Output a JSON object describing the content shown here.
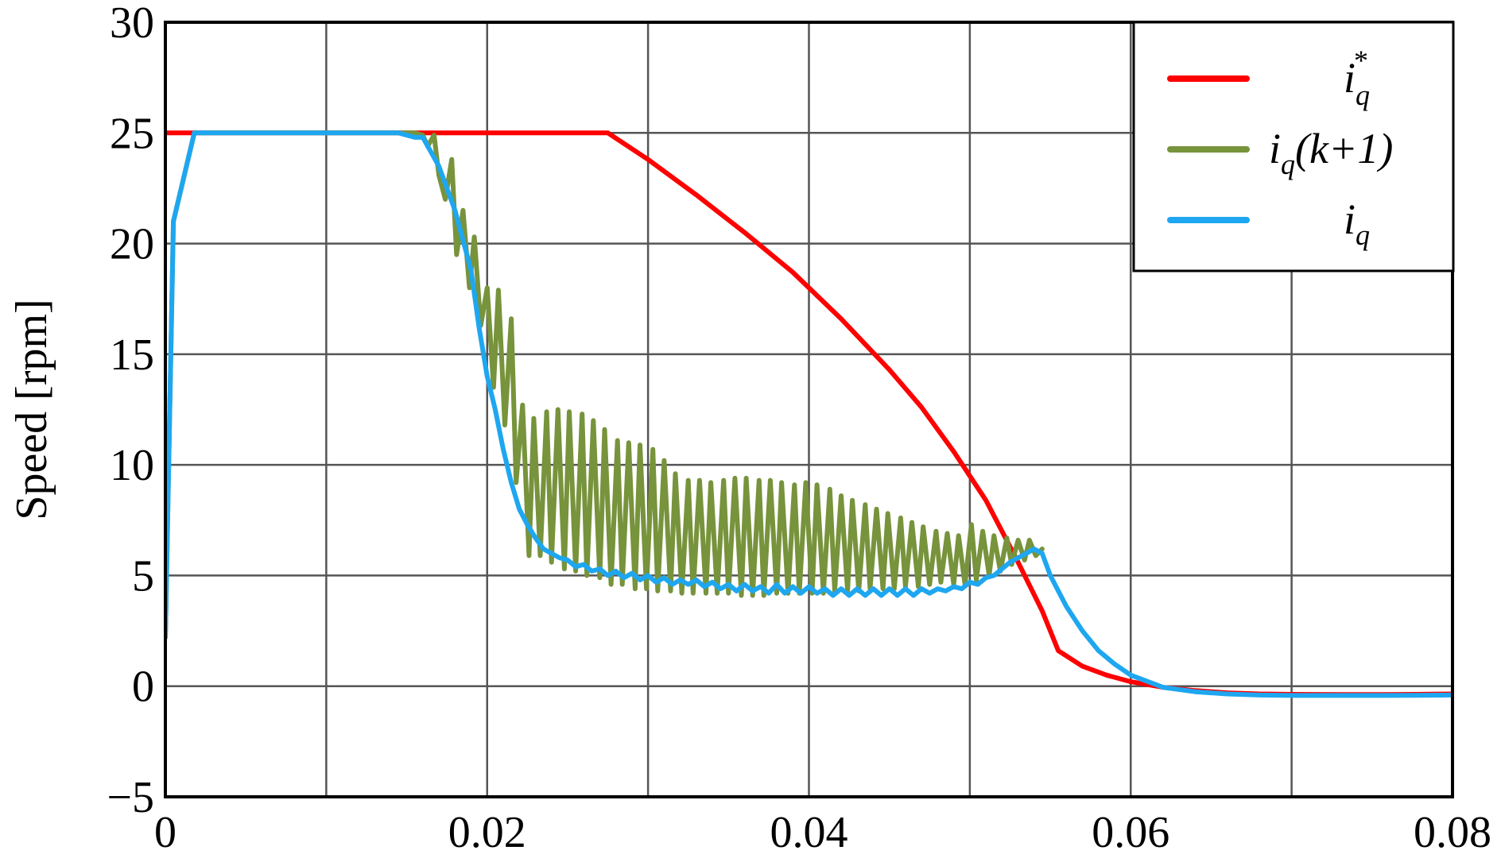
{
  "chart_data": {
    "type": "line",
    "title": "",
    "xlabel": "",
    "ylabel": "Speed [rpm]",
    "xlim": [
      0,
      0.08
    ],
    "ylim": [
      -5,
      30
    ],
    "grid": true,
    "legend_position": "top-right",
    "x_ticks": [
      {
        "value": 0,
        "label": "0"
      },
      {
        "value": 0.01,
        "label": ""
      },
      {
        "value": 0.02,
        "label": "0.02"
      },
      {
        "value": 0.03,
        "label": ""
      },
      {
        "value": 0.04,
        "label": "0.04"
      },
      {
        "value": 0.05,
        "label": ""
      },
      {
        "value": 0.06,
        "label": "0.06"
      },
      {
        "value": 0.07,
        "label": ""
      },
      {
        "value": 0.08,
        "label": "0.08"
      }
    ],
    "y_ticks": [
      {
        "value": -5,
        "label": "−5"
      },
      {
        "value": 0,
        "label": "0"
      },
      {
        "value": 5,
        "label": "5"
      },
      {
        "value": 10,
        "label": "10"
      },
      {
        "value": 15,
        "label": "15"
      },
      {
        "value": 20,
        "label": "20"
      },
      {
        "value": 25,
        "label": "25"
      },
      {
        "value": 30,
        "label": "30"
      }
    ],
    "series": [
      {
        "name": "i_q^*",
        "legend": {
          "base": "i",
          "sub": "q",
          "sup": "*",
          "tail": ""
        },
        "color": "#ff0000",
        "x": [
          0,
          0.0275,
          0.03,
          0.033,
          0.036,
          0.039,
          0.042,
          0.045,
          0.047,
          0.049,
          0.051,
          0.053,
          0.0545,
          0.0555,
          0.057,
          0.0585,
          0.06,
          0.062,
          0.064,
          0.066,
          0.068,
          0.07,
          0.073,
          0.076,
          0.08
        ],
        "y": [
          25,
          25,
          23.8,
          22.2,
          20.5,
          18.7,
          16.6,
          14.3,
          12.6,
          10.6,
          8.4,
          5.6,
          3.4,
          1.6,
          0.9,
          0.5,
          0.2,
          -0.05,
          -0.2,
          -0.3,
          -0.35,
          -0.37,
          -0.38,
          -0.38,
          -0.35
        ]
      },
      {
        "name": "i_q(k+1)",
        "legend": {
          "base": "i",
          "sub": "q",
          "sup": "",
          "tail": "(k+1)"
        },
        "color": "#77933c",
        "x": [
          0,
          0.0005,
          0.0018,
          0.0145,
          0.0155,
          0.016,
          0.0163,
          0.0167,
          0.017,
          0.0174,
          0.0178,
          0.0181,
          0.0185,
          0.0189,
          0.0192,
          0.0196,
          0.02,
          0.0204,
          0.0207,
          0.0211,
          0.0215,
          0.0218,
          0.0222,
          0.0226,
          0.0229,
          0.0233,
          0.0237,
          0.024,
          0.0244,
          0.0248,
          0.0251,
          0.0255,
          0.0259,
          0.0262,
          0.0266,
          0.027,
          0.0273,
          0.0277,
          0.0281,
          0.0284,
          0.0288,
          0.0292,
          0.0295,
          0.0299,
          0.0303,
          0.0306,
          0.031,
          0.0314,
          0.0317,
          0.0321,
          0.0325,
          0.0328,
          0.0332,
          0.0336,
          0.0339,
          0.0343,
          0.0347,
          0.035,
          0.0354,
          0.0358,
          0.0361,
          0.0365,
          0.0369,
          0.0372,
          0.0376,
          0.038,
          0.0383,
          0.0387,
          0.0391,
          0.0394,
          0.0398,
          0.0402,
          0.0405,
          0.0409,
          0.0413,
          0.0416,
          0.042,
          0.0424,
          0.0427,
          0.0431,
          0.0435,
          0.0438,
          0.0442,
          0.0446,
          0.0449,
          0.0453,
          0.0457,
          0.046,
          0.0464,
          0.0468,
          0.0471,
          0.0475,
          0.0479,
          0.0482,
          0.0486,
          0.049,
          0.0493,
          0.0497,
          0.0501,
          0.0504,
          0.0508,
          0.0512,
          0.0515,
          0.0519,
          0.0523,
          0.0526,
          0.053,
          0.0534,
          0.0537,
          0.0541,
          0.0545
        ],
        "y": [
          2.2,
          21,
          25,
          25,
          25,
          24.9,
          24.4,
          24.9,
          23.1,
          22,
          23.8,
          19.5,
          21.5,
          18,
          20.3,
          16.3,
          18,
          13.5,
          17.9,
          11.8,
          16.6,
          9.2,
          12.7,
          5.9,
          12.1,
          5.9,
          12.4,
          5.6,
          12.5,
          5.3,
          12.4,
          5.2,
          12.3,
          5.0,
          12.0,
          4.9,
          11.6,
          4.6,
          11.1,
          4.6,
          11.0,
          4.4,
          10.9,
          4.4,
          10.7,
          4.3,
          10.2,
          4.3,
          9.6,
          4.2,
          9.3,
          4.2,
          9.3,
          4.2,
          9.2,
          4.2,
          9.3,
          4.2,
          9.4,
          4.1,
          9.4,
          4.1,
          9.3,
          4.1,
          9.3,
          4.2,
          9.2,
          4.2,
          9.1,
          4.2,
          9.2,
          4.2,
          9.1,
          4.2,
          8.9,
          4.3,
          8.6,
          4.3,
          8.4,
          4.3,
          8.2,
          4.4,
          8.0,
          4.4,
          7.8,
          4.4,
          7.6,
          4.5,
          7.4,
          4.5,
          7.2,
          4.6,
          7.0,
          4.7,
          6.9,
          4.6,
          6.8,
          4.6,
          7.3,
          4.8,
          7.0,
          5.0,
          6.8,
          5.2,
          6.7,
          5.5,
          6.6,
          5.7,
          6.6,
          5.9,
          6.2
        ]
      },
      {
        "name": "i_q",
        "legend": {
          "base": "i",
          "sub": "q",
          "sup": "",
          "tail": ""
        },
        "color": "#1ea7f0",
        "x": [
          0,
          0.0005,
          0.0018,
          0.0145,
          0.0155,
          0.016,
          0.017,
          0.018,
          0.019,
          0.0195,
          0.02,
          0.0205,
          0.021,
          0.0215,
          0.022,
          0.0225,
          0.023,
          0.0235,
          0.024,
          0.0245,
          0.025,
          0.0255,
          0.026,
          0.0265,
          0.027,
          0.0275,
          0.028,
          0.0285,
          0.029,
          0.0295,
          0.03,
          0.0305,
          0.031,
          0.0315,
          0.032,
          0.0325,
          0.033,
          0.0335,
          0.034,
          0.0345,
          0.035,
          0.0355,
          0.036,
          0.0365,
          0.037,
          0.0375,
          0.038,
          0.0385,
          0.039,
          0.0395,
          0.04,
          0.0405,
          0.041,
          0.0415,
          0.042,
          0.0425,
          0.043,
          0.0435,
          0.044,
          0.0445,
          0.045,
          0.0455,
          0.046,
          0.0465,
          0.047,
          0.0475,
          0.048,
          0.0485,
          0.049,
          0.0495,
          0.05,
          0.0505,
          0.051,
          0.0515,
          0.052,
          0.0525,
          0.053,
          0.0535,
          0.054,
          0.0545,
          0.055,
          0.056,
          0.057,
          0.058,
          0.059,
          0.06,
          0.062,
          0.064,
          0.066,
          0.068,
          0.07,
          0.073,
          0.076,
          0.08
        ],
        "y": [
          2.2,
          21,
          25,
          25,
          24.8,
          24.8,
          23.5,
          21.5,
          18.8,
          16.2,
          14.0,
          12.5,
          10.7,
          9.2,
          8.0,
          7.3,
          6.7,
          6.2,
          6.0,
          5.8,
          5.7,
          5.4,
          5.5,
          5.2,
          5.3,
          5.0,
          5.2,
          4.9,
          5.1,
          4.8,
          5.0,
          4.7,
          4.9,
          4.6,
          4.8,
          4.6,
          4.8,
          4.5,
          4.7,
          4.4,
          4.6,
          4.3,
          4.6,
          4.3,
          4.5,
          4.2,
          4.6,
          4.2,
          4.5,
          4.2,
          4.5,
          4.2,
          4.4,
          4.1,
          4.4,
          4.1,
          4.4,
          4.1,
          4.4,
          4.1,
          4.4,
          4.1,
          4.4,
          4.1,
          4.4,
          4.2,
          4.4,
          4.3,
          4.5,
          4.4,
          4.7,
          4.6,
          4.9,
          5.0,
          5.3,
          5.6,
          5.8,
          6.0,
          6.2,
          6.0,
          5.0,
          3.6,
          2.5,
          1.6,
          1.0,
          0.5,
          -0.05,
          -0.25,
          -0.35,
          -0.4,
          -0.42,
          -0.42,
          -0.42,
          -0.4
        ]
      }
    ]
  }
}
